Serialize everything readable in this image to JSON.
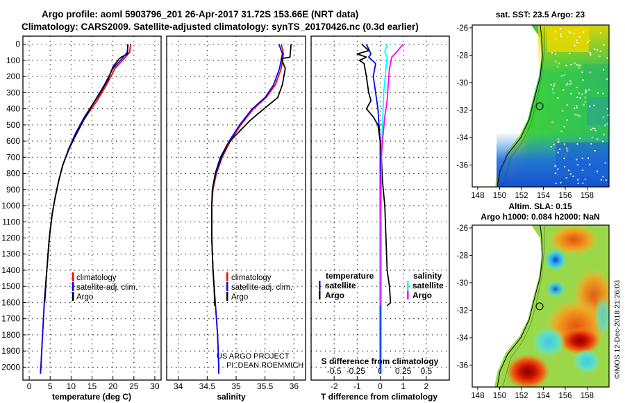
{
  "header": {
    "line1": "Argo profile: aoml 5903796_201 26-Apr-2017 31.72S 153.66E (NRT data)",
    "line2": "Climatology: CARS2009. Satellite-adjusted climatology: synTS_20170426.nc (0.3d earlier)"
  },
  "colors": {
    "climatology": "#ff0000",
    "satellite": "#0000ff",
    "argo": "#000000",
    "sal_satellite": "#00ffff",
    "sal_argo": "#ff00ff"
  },
  "chart_data": [
    {
      "type": "line",
      "id": "temperature",
      "xlabel": "temperature (deg C)",
      "ylabel": "",
      "xlim": [
        -1.5,
        31.5
      ],
      "ylim": [
        2080,
        -50
      ],
      "xticks": [
        0,
        5,
        10,
        15,
        20,
        25,
        30
      ],
      "yticks": [
        0,
        100,
        200,
        300,
        400,
        500,
        600,
        700,
        800,
        900,
        1000,
        1100,
        1200,
        1300,
        1400,
        1500,
        1600,
        1700,
        1800,
        1900,
        2000
      ],
      "legend": [
        "climatology",
        "satellite-adj. clim.",
        "Argo"
      ],
      "series": [
        {
          "name": "climatology",
          "color": "#ff0000",
          "points": [
            [
              24.2,
              0
            ],
            [
              24.0,
              50
            ],
            [
              23.0,
              80
            ],
            [
              20.5,
              150
            ],
            [
              18.5,
              250
            ],
            [
              16.2,
              350
            ],
            [
              13.5,
              450
            ],
            [
              11.2,
              550
            ],
            [
              9.5,
              650
            ],
            [
              8.0,
              750
            ],
            [
              7.0,
              850
            ],
            [
              6.2,
              950
            ],
            [
              5.5,
              1050
            ],
            [
              4.8,
              1200
            ],
            [
              4.2,
              1400
            ],
            [
              3.6,
              1600
            ],
            [
              3.2,
              1800
            ],
            [
              2.8,
              2000
            ],
            [
              2.7,
              2040
            ]
          ]
        },
        {
          "name": "satellite-adj. clim.",
          "color": "#0000ff",
          "points": [
            [
              23.6,
              0
            ],
            [
              23.4,
              50
            ],
            [
              22.5,
              80
            ],
            [
              20.0,
              150
            ],
            [
              18.0,
              250
            ],
            [
              15.7,
              350
            ],
            [
              13.2,
              450
            ],
            [
              11.1,
              550
            ],
            [
              9.4,
              650
            ],
            [
              8.0,
              750
            ],
            [
              7.0,
              850
            ],
            [
              6.2,
              950
            ],
            [
              5.5,
              1050
            ],
            [
              4.8,
              1200
            ],
            [
              4.2,
              1400
            ],
            [
              3.6,
              1600
            ],
            [
              3.2,
              1800
            ],
            [
              2.8,
              2000
            ],
            [
              2.7,
              2040
            ]
          ]
        },
        {
          "name": "Argo",
          "color": "#000000",
          "points": [
            [
              23.5,
              0
            ],
            [
              23.5,
              60
            ],
            [
              22.0,
              80
            ],
            [
              21.5,
              90
            ],
            [
              20.0,
              140
            ],
            [
              18.8,
              220
            ],
            [
              17.0,
              300
            ],
            [
              15.0,
              380
            ],
            [
              12.8,
              480
            ],
            [
              10.8,
              580
            ],
            [
              9.5,
              650
            ],
            [
              8.0,
              750
            ],
            [
              7.0,
              850
            ],
            [
              6.2,
              950
            ],
            [
              5.5,
              1050
            ],
            [
              4.8,
              1200
            ],
            [
              4.2,
              1400
            ],
            [
              3.7,
              1600
            ]
          ]
        }
      ]
    },
    {
      "type": "line",
      "id": "salinity",
      "xlabel": "salinity",
      "ylabel": "",
      "xlim": [
        33.8,
        36.2
      ],
      "ylim": [
        2080,
        -50
      ],
      "xticks": [
        34,
        34.5,
        35,
        35.5,
        36
      ],
      "xtick_labels": [
        "34",
        "34.5",
        "35",
        "35.5",
        "36"
      ],
      "yticks": [
        0,
        100,
        200,
        300,
        400,
        500,
        600,
        700,
        800,
        900,
        1000,
        1100,
        1200,
        1300,
        1400,
        1500,
        1600,
        1700,
        1800,
        1900,
        2000
      ],
      "legend": [
        "climatology",
        "satellite-adj. clim.",
        "Argo"
      ],
      "series": [
        {
          "name": "climatology",
          "color": "#ff0000",
          "points": [
            [
              35.78,
              0
            ],
            [
              35.82,
              60
            ],
            [
              35.78,
              150
            ],
            [
              35.68,
              250
            ],
            [
              35.52,
              330
            ],
            [
              35.3,
              400
            ],
            [
              35.08,
              500
            ],
            [
              34.9,
              600
            ],
            [
              34.76,
              700
            ],
            [
              34.66,
              800
            ],
            [
              34.6,
              900
            ],
            [
              34.58,
              1000
            ],
            [
              34.58,
              1100
            ],
            [
              34.58,
              1200
            ],
            [
              34.59,
              1300
            ],
            [
              34.6,
              1400
            ],
            [
              34.62,
              1500
            ],
            [
              34.64,
              1600
            ],
            [
              34.66,
              1700
            ],
            [
              34.68,
              1800
            ],
            [
              34.69,
              1900
            ],
            [
              34.7,
              2000
            ],
            [
              34.7,
              2040
            ]
          ]
        },
        {
          "name": "satellite-adj. clim.",
          "color": "#0000ff",
          "points": [
            [
              35.74,
              0
            ],
            [
              35.8,
              60
            ],
            [
              35.75,
              150
            ],
            [
              35.65,
              250
            ],
            [
              35.5,
              330
            ],
            [
              35.28,
              400
            ],
            [
              35.06,
              500
            ],
            [
              34.88,
              600
            ],
            [
              34.75,
              700
            ],
            [
              34.65,
              800
            ],
            [
              34.59,
              900
            ],
            [
              34.58,
              1000
            ],
            [
              34.58,
              1100
            ],
            [
              34.58,
              1200
            ],
            [
              34.59,
              1300
            ],
            [
              34.6,
              1400
            ],
            [
              34.62,
              1500
            ],
            [
              34.64,
              1600
            ],
            [
              34.66,
              1700
            ],
            [
              34.68,
              1800
            ],
            [
              34.69,
              1900
            ],
            [
              34.7,
              2000
            ],
            [
              34.7,
              2040
            ]
          ]
        },
        {
          "name": "Argo",
          "color": "#000000",
          "points": [
            [
              35.95,
              0
            ],
            [
              35.93,
              80
            ],
            [
              35.78,
              90
            ],
            [
              35.85,
              150
            ],
            [
              35.8,
              250
            ],
            [
              35.72,
              330
            ],
            [
              35.55,
              380
            ],
            [
              35.25,
              470
            ],
            [
              34.95,
              580
            ],
            [
              34.85,
              620
            ],
            [
              34.73,
              700
            ],
            [
              34.64,
              800
            ],
            [
              34.59,
              900
            ],
            [
              34.58,
              1000
            ],
            [
              34.58,
              1100
            ],
            [
              34.58,
              1200
            ],
            [
              34.59,
              1300
            ],
            [
              34.6,
              1400
            ],
            [
              34.62,
              1500
            ],
            [
              34.63,
              1620
            ]
          ]
        }
      ]
    },
    {
      "type": "line",
      "id": "difference",
      "xlabel": "T difference from climatology",
      "xlabel2": "S difference from climatology",
      "xlim": [
        -3,
        3
      ],
      "ylim": [
        2080,
        -50
      ],
      "xticks": [
        -2,
        -1,
        0,
        1,
        2
      ],
      "xticks_s": [
        "-0.5",
        "-0.25",
        "0",
        "0.25",
        "0.5"
      ],
      "legend_t_title": "temperature",
      "legend_s_title": "salinity",
      "legend_t": [
        "satellite",
        "Argo"
      ],
      "legend_s": [
        "satellite",
        "Argo"
      ],
      "series": [
        {
          "name": "T satellite",
          "color": "#0000ff",
          "points": [
            [
              -0.6,
              0
            ],
            [
              -0.4,
              60
            ],
            [
              -0.5,
              80
            ],
            [
              -0.2,
              120
            ],
            [
              -0.3,
              200
            ],
            [
              -0.2,
              300
            ],
            [
              -0.1,
              400
            ],
            [
              -0.05,
              500
            ],
            [
              0,
              600
            ],
            [
              0,
              1000
            ],
            [
              0,
              1500
            ],
            [
              0,
              2040
            ]
          ]
        },
        {
          "name": "T Argo",
          "color": "#000000",
          "points": [
            [
              -0.8,
              0
            ],
            [
              -0.5,
              40
            ],
            [
              -1.0,
              60
            ],
            [
              -0.6,
              80
            ],
            [
              -0.9,
              100
            ],
            [
              -0.7,
              120
            ],
            [
              -0.6,
              200
            ],
            [
              -0.5,
              300
            ],
            [
              -0.4,
              350
            ],
            [
              -0.6,
              400
            ],
            [
              -0.3,
              450
            ],
            [
              -0.1,
              500
            ],
            [
              0,
              600
            ],
            [
              0.05,
              700
            ],
            [
              0.1,
              850
            ],
            [
              0.2,
              1000
            ],
            [
              0.25,
              1200
            ],
            [
              0.3,
              1400
            ],
            [
              0.4,
              1500
            ],
            [
              0.45,
              1600
            ],
            [
              0.3,
              1620
            ]
          ]
        },
        {
          "name": "S satellite",
          "color": "#00ffff",
          "points": [
            [
              0.3,
              0
            ],
            [
              0.2,
              50
            ],
            [
              0.3,
              80
            ],
            [
              0.25,
              150
            ],
            [
              0.15,
              300
            ],
            [
              0.1,
              500
            ],
            [
              0.05,
              700
            ],
            [
              0.05,
              900
            ],
            [
              0.05,
              1100
            ],
            [
              0.05,
              1300
            ],
            [
              0.05,
              1500
            ],
            [
              0.05,
              1700
            ],
            [
              0.05,
              1900
            ],
            [
              0.05,
              2040
            ]
          ]
        },
        {
          "name": "S Argo",
          "color": "#ff00ff",
          "points": [
            [
              1.0,
              0
            ],
            [
              0.7,
              50
            ],
            [
              0.5,
              80
            ],
            [
              0.45,
              120
            ],
            [
              0.4,
              150
            ],
            [
              0.35,
              250
            ],
            [
              0.3,
              350
            ],
            [
              0.2,
              450
            ],
            [
              0.1,
              600
            ],
            [
              0.05,
              700
            ],
            [
              0.02,
              900
            ],
            [
              0,
              1100
            ],
            [
              0,
              1300
            ],
            [
              0,
              1500
            ],
            [
              0,
              1620
            ]
          ]
        }
      ]
    }
  ],
  "footer": {
    "project": "US ARGO PROJECT",
    "pi": "PI: DEAN ROEMMICH",
    "watermark": "©IMOS 12-Dec-2018 21:26:03"
  },
  "map_sst": {
    "title": "sat. SST: 23.5 Argo: 23",
    "xticks": [
      "148",
      "150",
      "152",
      "154",
      "156",
      "158"
    ],
    "yticks": [
      "-26",
      "-28",
      "-30",
      "-32",
      "-34",
      "-36"
    ],
    "xlim": [
      147.5,
      160.0
    ],
    "ylim": [
      -37.6,
      -25.8
    ],
    "argo_lon": 153.66,
    "argo_lat": -31.72
  },
  "map_sla": {
    "title1": "Altim. SLA: 0.15",
    "title2": "Argo h1000: 0.084 h2000: NaN",
    "xticks": [
      "148",
      "150",
      "152",
      "154",
      "156",
      "158"
    ],
    "yticks": [
      "-26",
      "-28",
      "-30",
      "-32",
      "-34",
      "-36"
    ],
    "xlim": [
      147.5,
      160.0
    ],
    "ylim": [
      -37.6,
      -25.8
    ],
    "argo_lon": 153.66,
    "argo_lat": -31.72
  }
}
